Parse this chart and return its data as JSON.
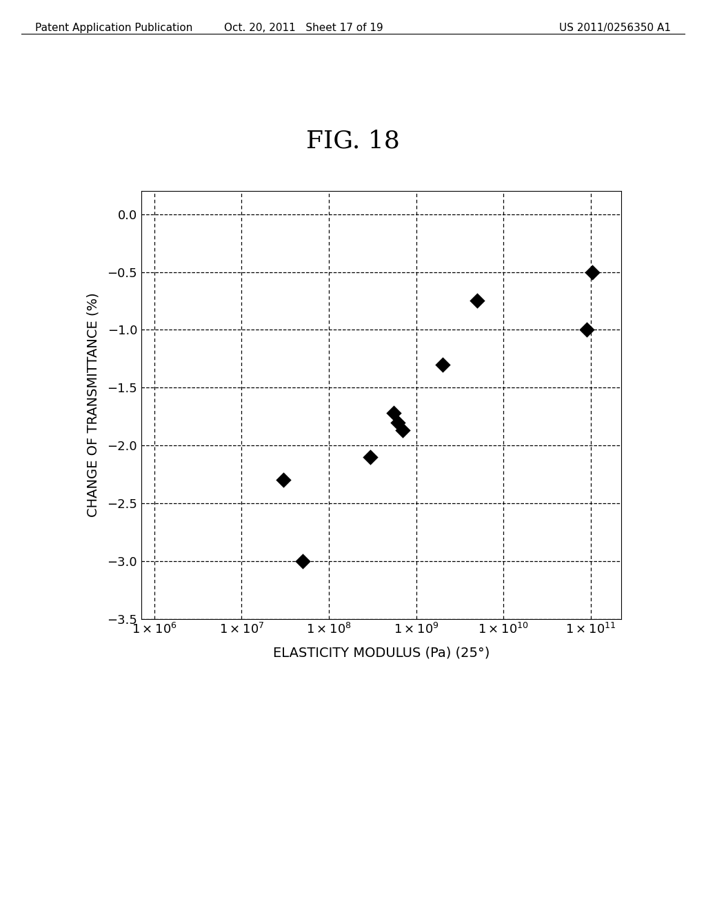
{
  "title": "FIG. 18",
  "xlabel": "ELASTICITY MODULUS (Pa) (25°)",
  "ylabel": "CHANGE OF TRANSMITTANCE (%)",
  "ylim": [
    -3.5,
    0.2
  ],
  "yticks": [
    0.0,
    -0.5,
    -1.0,
    -1.5,
    -2.0,
    -2.5,
    -3.0,
    -3.5
  ],
  "ytick_labels": [
    "0.0",
    "−0.5",
    "−1.0",
    "−1.5",
    "−2.0",
    "−2.5",
    "−3.0",
    "−3.5"
  ],
  "xtick_positions": [
    1000000.0,
    10000000.0,
    100000000.0,
    1000000000.0,
    10000000000.0,
    100000000000.0
  ],
  "data_x": [
    30000000.0,
    50000000.0,
    300000000.0,
    550000000.0,
    620000000.0,
    700000000.0,
    2000000000.0,
    5000000000.0,
    90000000000.0,
    105000000000.0
  ],
  "data_y": [
    -2.3,
    -3.0,
    -2.1,
    -1.72,
    -1.8,
    -1.87,
    -1.3,
    -0.75,
    -1.0,
    -0.5
  ],
  "marker_color": "#000000",
  "marker_size": 130,
  "grid_color": "#000000",
  "background_color": "#ffffff",
  "title_fontsize": 26,
  "axis_label_fontsize": 14,
  "tick_fontsize": 13,
  "header_left": "Patent Application Publication",
  "header_center": "Oct. 20, 2011   Sheet 17 of 19",
  "header_right": "US 2011/0256350 A1",
  "header_fontsize": 11
}
